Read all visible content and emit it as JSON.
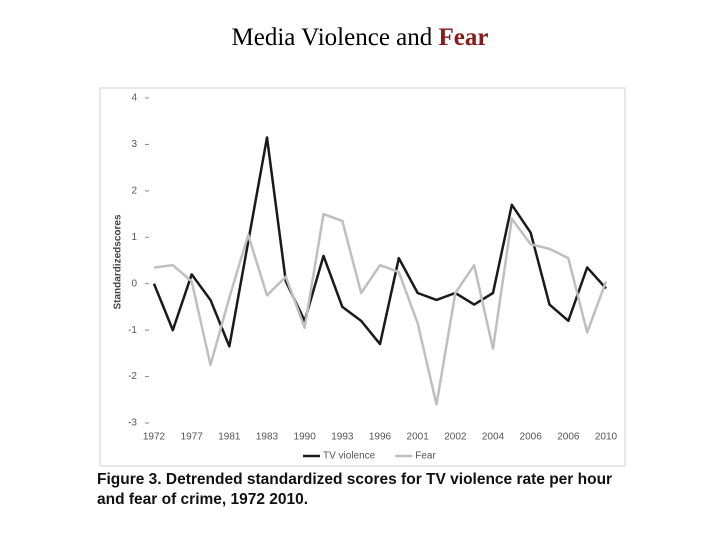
{
  "header": {
    "title": "Media Violence and",
    "title_emphasis": "Fear"
  },
  "chart_data": {
    "type": "line",
    "y_label": "Standardizedscores",
    "caption": "Figure 3. Detrended standardized scores for TV violence rate per hour and fear of crime, 1972  2010.",
    "categories": [
      "1972",
      null,
      "1977",
      null,
      "1981",
      null,
      "1983",
      null,
      "1990",
      null,
      "1993",
      null,
      "1996",
      null,
      "2001",
      null,
      "2002",
      null,
      "2004",
      null,
      "2006",
      null,
      "2006",
      null,
      "2010"
    ],
    "series": [
      {
        "name": "TV violence",
        "color": "#1a1a1a",
        "values": [
          0,
          -1.0,
          0.2,
          -0.35,
          -1.35,
          0.9,
          3.15,
          0.05,
          -0.8,
          0.6,
          -0.5,
          -0.8,
          -1.3,
          0.55,
          -0.2,
          -0.35,
          -0.2,
          -0.45,
          -0.2,
          1.7,
          1.1,
          -0.45,
          -0.8,
          0.35,
          -0.1
        ]
      },
      {
        "name": "Fear",
        "color": "#bfbfbf",
        "values": [
          0.35,
          0.4,
          0.05,
          -1.75,
          -0.3,
          1.05,
          -0.25,
          0.15,
          -0.95,
          1.5,
          1.35,
          -0.2,
          0.4,
          0.25,
          -0.85,
          -2.6,
          -0.2,
          0.4,
          -1.4,
          1.4,
          0.85,
          0.75,
          0.55,
          -1.05,
          0.05
        ]
      }
    ],
    "ylim": [
      -3,
      4
    ],
    "yticks": [
      -3,
      -2,
      -1,
      0,
      1,
      2,
      3,
      4
    ]
  }
}
